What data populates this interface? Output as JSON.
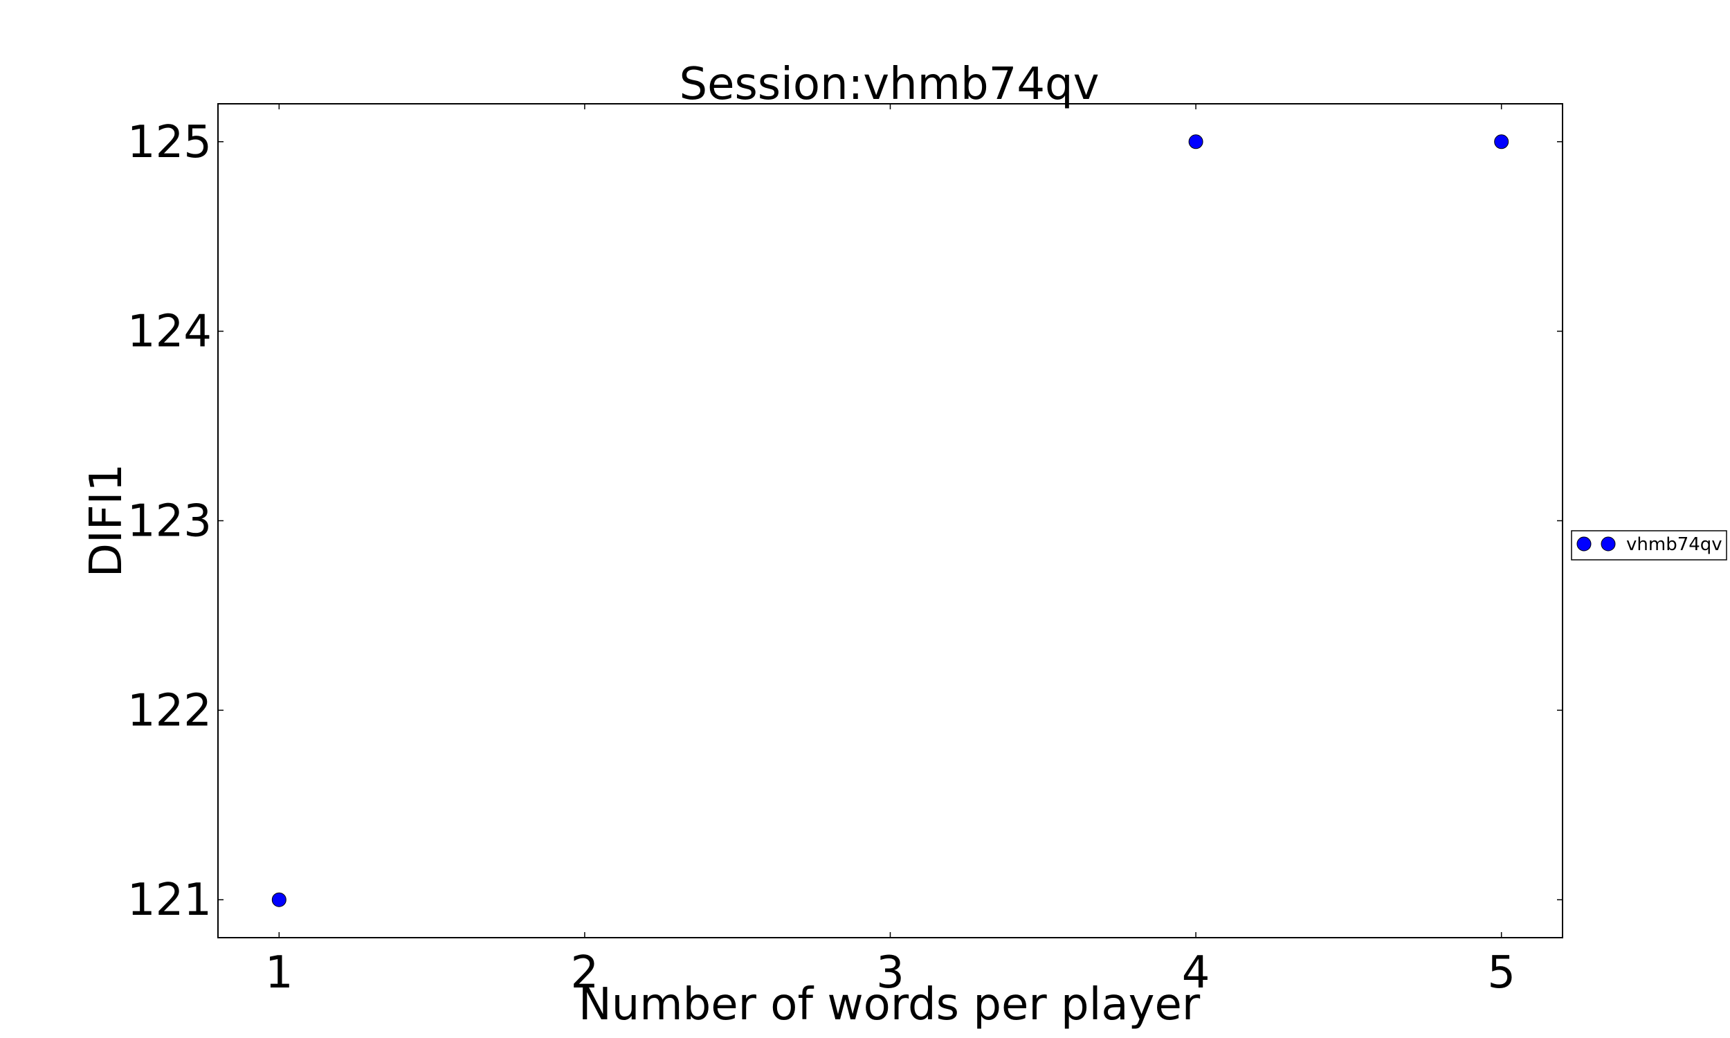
{
  "chart_data": {
    "type": "scatter",
    "title": "Session:vhmb74qv",
    "xlabel": "Number of words per player",
    "ylabel": "DIFI1",
    "xlim": [
      0.8,
      5.2
    ],
    "ylim": [
      120.8,
      125.2
    ],
    "xticks": [
      "1",
      "2",
      "3",
      "4",
      "5"
    ],
    "yticks": [
      "121",
      "122",
      "123",
      "124",
      "125"
    ],
    "grid": false,
    "legend_position": "right",
    "series": [
      {
        "name": "vhmb74qv",
        "color": "#0000ff",
        "x": [
          1,
          4,
          5
        ],
        "y": [
          121,
          125,
          125
        ]
      }
    ]
  }
}
